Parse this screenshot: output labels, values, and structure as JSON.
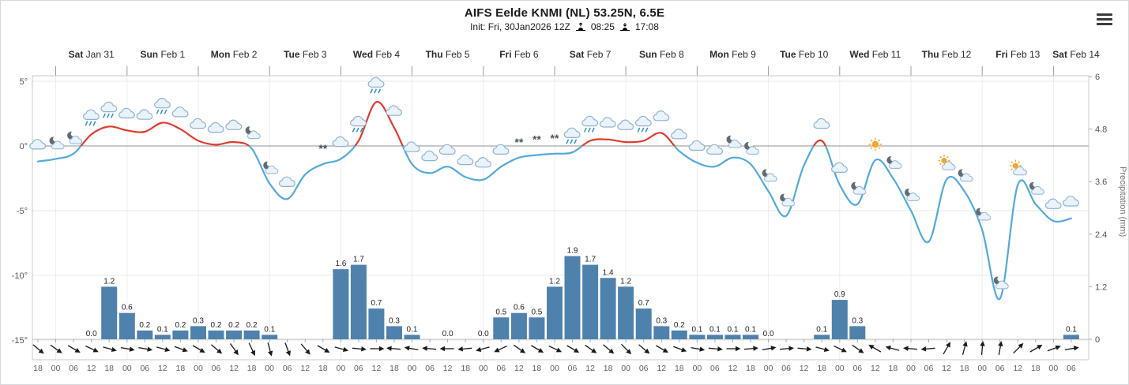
{
  "chart_data": {
    "type": "line",
    "subtype": "meteogram: temperature line + precipitation bars + weather icons + wind arrows",
    "title": "AIFS Eelde KNMI (NL) 53.25N, 6.5E",
    "init_label": "Init: Fri, 30Jan2026 12Z",
    "sunrise": "08:25",
    "sunset": "17:08",
    "x_axis": {
      "start": "Fri 30 Jan 18:00",
      "step_hours": 6,
      "first_tick_hour": 18,
      "num_ticks": 59,
      "ticks_per_day": 4,
      "day_labels": [
        {
          "day": "Sat",
          "date": "Jan 31"
        },
        {
          "day": "Sun",
          "date": "Feb 1"
        },
        {
          "day": "Mon",
          "date": "Feb 2"
        },
        {
          "day": "Tue",
          "date": "Feb 3"
        },
        {
          "day": "Wed",
          "date": "Feb 4"
        },
        {
          "day": "Thu",
          "date": "Feb 5"
        },
        {
          "day": "Fri",
          "date": "Feb 6"
        },
        {
          "day": "Sat",
          "date": "Feb 7"
        },
        {
          "day": "Sun",
          "date": "Feb 8"
        },
        {
          "day": "Mon",
          "date": "Feb 9"
        },
        {
          "day": "Tue",
          "date": "Feb 10"
        },
        {
          "day": "Wed",
          "date": "Feb 11"
        },
        {
          "day": "Thu",
          "date": "Feb 12"
        },
        {
          "day": "Fri",
          "date": "Feb 13"
        },
        {
          "day": "Sat",
          "date": "Feb 14"
        }
      ]
    },
    "y_left": {
      "unit": "°C",
      "tick_labels": [
        "5°",
        "0°",
        "-5°",
        "-10°",
        "-15°"
      ],
      "tick_values": [
        5,
        0,
        -5,
        -10,
        -15
      ],
      "range": [
        -15,
        5
      ]
    },
    "y_right": {
      "label": "Precipitation (mm)",
      "unit": "mm",
      "tick_labels": [
        "6",
        "4.8",
        "3.6",
        "2.4",
        "1.2",
        "0"
      ],
      "tick_values": [
        6,
        4.8,
        3.6,
        2.4,
        1.2,
        0
      ],
      "range": [
        0,
        6
      ]
    },
    "series": {
      "temperature_c": [
        -1.2,
        -1.0,
        -0.6,
        0.9,
        1.5,
        1.2,
        1.1,
        1.8,
        1.3,
        0.4,
        0.1,
        0.3,
        -0.2,
        -2.9,
        -4.1,
        -2.2,
        -1.4,
        -1.0,
        0.4,
        3.4,
        1.4,
        -1.4,
        -2.1,
        -1.6,
        -2.4,
        -2.6,
        -1.6,
        -0.9,
        -0.7,
        -0.6,
        -0.5,
        0.4,
        0.5,
        0.3,
        0.4,
        1.0,
        -0.4,
        -1.3,
        -1.6,
        -0.9,
        -1.4,
        -3.5,
        -5.4,
        -1.5,
        0.4,
        -3.0,
        -4.5,
        -1.1,
        -2.5,
        -5.0,
        -7.4,
        -2.6,
        -3.5,
        -6.5,
        -11.8,
        -3.0,
        -4.5,
        -5.8,
        -5.6
      ],
      "precipitation_mm": [
        null,
        null,
        null,
        0.0,
        1.2,
        0.6,
        0.2,
        0.1,
        0.2,
        0.3,
        0.2,
        0.2,
        0.2,
        0.1,
        null,
        null,
        null,
        1.6,
        1.7,
        0.7,
        0.3,
        0.1,
        null,
        0.0,
        null,
        0.0,
        0.5,
        0.6,
        0.5,
        1.2,
        1.9,
        1.7,
        1.4,
        1.2,
        0.7,
        0.3,
        0.2,
        0.1,
        0.1,
        0.1,
        0.1,
        0.0,
        null,
        null,
        0.1,
        0.9,
        0.3,
        null,
        null,
        null,
        null,
        null,
        null,
        null,
        null,
        null,
        null,
        null,
        0.1
      ],
      "wind_arrow_deg": [
        40,
        35,
        30,
        25,
        15,
        10,
        10,
        15,
        20,
        30,
        40,
        55,
        65,
        75,
        70,
        50,
        30,
        15,
        5,
        0,
        185,
        190,
        185,
        180,
        175,
        165,
        155,
        35,
        30,
        25,
        30,
        35,
        40,
        45,
        40,
        30,
        20,
        10,
        5,
        0,
        355,
        350,
        355,
        5,
        15,
        25,
        35,
        210,
        195,
        185,
        175,
        300,
        285,
        275,
        280,
        315,
        330,
        340,
        350
      ],
      "wind_convention": "degrees clockwise of screen, 0 = arrow pointing right/east",
      "weather_icons": [
        {
          "i": 0,
          "type": "cloud"
        },
        {
          "i": 1,
          "type": "moon-cloud"
        },
        {
          "i": 2,
          "type": "moon-cloud"
        },
        {
          "i": 3,
          "type": "rain"
        },
        {
          "i": 4,
          "type": "rain"
        },
        {
          "i": 5,
          "type": "cloud"
        },
        {
          "i": 6,
          "type": "cloud"
        },
        {
          "i": 7,
          "type": "rain"
        },
        {
          "i": 8,
          "type": "cloud"
        },
        {
          "i": 9,
          "type": "cloud"
        },
        {
          "i": 10,
          "type": "cloud"
        },
        {
          "i": 11,
          "type": "cloud"
        },
        {
          "i": 12,
          "type": "moon-cloud"
        },
        {
          "i": 13,
          "type": "moon-cloud"
        },
        {
          "i": 14,
          "type": "cloud"
        },
        {
          "i": 16,
          "type": "snow"
        },
        {
          "i": 17,
          "type": "cloud"
        },
        {
          "i": 18,
          "type": "rain"
        },
        {
          "i": 19,
          "type": "rain"
        },
        {
          "i": 20,
          "type": "cloud"
        },
        {
          "i": 21,
          "type": "cloud"
        },
        {
          "i": 22,
          "type": "cloud"
        },
        {
          "i": 23,
          "type": "cloud"
        },
        {
          "i": 24,
          "type": "cloud"
        },
        {
          "i": 25,
          "type": "cloud"
        },
        {
          "i": 26,
          "type": "cloud"
        },
        {
          "i": 27,
          "type": "snow"
        },
        {
          "i": 28,
          "type": "snow"
        },
        {
          "i": 29,
          "type": "snow"
        },
        {
          "i": 30,
          "type": "rain"
        },
        {
          "i": 31,
          "type": "rain"
        },
        {
          "i": 32,
          "type": "cloud"
        },
        {
          "i": 33,
          "type": "cloud"
        },
        {
          "i": 34,
          "type": "rain"
        },
        {
          "i": 35,
          "type": "cloud"
        },
        {
          "i": 36,
          "type": "cloud"
        },
        {
          "i": 37,
          "type": "cloud"
        },
        {
          "i": 38,
          "type": "cloud"
        },
        {
          "i": 39,
          "type": "moon-cloud"
        },
        {
          "i": 40,
          "type": "moon-cloud"
        },
        {
          "i": 41,
          "type": "moon-cloud"
        },
        {
          "i": 42,
          "type": "moon-cloud"
        },
        {
          "i": 44,
          "type": "cloud"
        },
        {
          "i": 45,
          "type": "cloud"
        },
        {
          "i": 46,
          "type": "moon-cloud"
        },
        {
          "i": 47,
          "type": "sun"
        },
        {
          "i": 48,
          "type": "moon-cloud"
        },
        {
          "i": 49,
          "type": "moon-cloud"
        },
        {
          "i": 51,
          "type": "sun-cloud"
        },
        {
          "i": 52,
          "type": "moon-cloud"
        },
        {
          "i": 53,
          "type": "moon-cloud"
        },
        {
          "i": 54,
          "type": "moon-cloud"
        },
        {
          "i": 55,
          "type": "sun-cloud"
        },
        {
          "i": 56,
          "type": "moon-cloud"
        },
        {
          "i": 57,
          "type": "cloud"
        },
        {
          "i": 58,
          "type": "cloud"
        }
      ]
    },
    "colors": {
      "temp_above_zero": "#e03b2f",
      "temp_below_zero": "#53a9dd",
      "precip_bar": "#4f81ad",
      "zero_line": "#909090",
      "grid": "#e8e8e8",
      "axis": "#c8c8c8",
      "day_label": "#2b2b2b",
      "time_label": "#606060",
      "bar_label": "#222222",
      "sun": "#f6a623",
      "cloud_fill": "#eaf2fa",
      "cloud_stroke": "#8fb2d0",
      "rain_drop": "#2f8fd0",
      "moon": "#626a72",
      "wind_arrow": "#1a1a1a"
    },
    "grid": true,
    "legend": false
  }
}
